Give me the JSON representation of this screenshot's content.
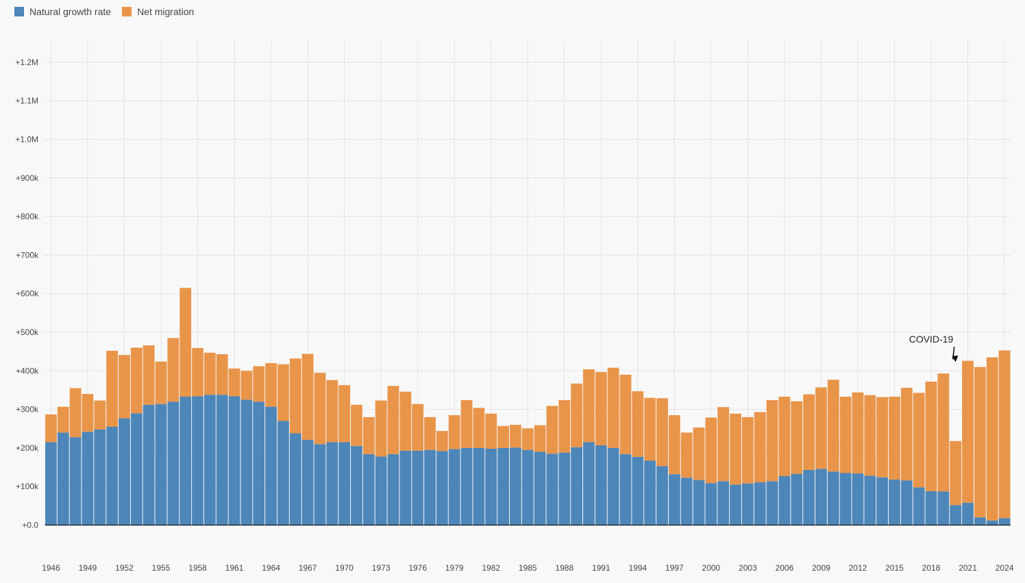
{
  "colors": {
    "natural": "#4d86b9",
    "migration": "#e8954a",
    "grid": "#e4e4e4",
    "axis": "#1a1a1a"
  },
  "chart_data": {
    "type": "bar",
    "stacked": true,
    "grid": true,
    "legend_position": "top-left",
    "title": "",
    "xlabel": "",
    "ylabel": "",
    "ylim": [
      0,
      1250000
    ],
    "years": [
      1946,
      1947,
      1948,
      1949,
      1950,
      1951,
      1952,
      1953,
      1954,
      1955,
      1956,
      1957,
      1958,
      1959,
      1960,
      1961,
      1962,
      1963,
      1964,
      1965,
      1966,
      1967,
      1968,
      1969,
      1970,
      1971,
      1972,
      1973,
      1974,
      1975,
      1976,
      1977,
      1978,
      1979,
      1980,
      1981,
      1982,
      1983,
      1984,
      1985,
      1986,
      1987,
      1988,
      1989,
      1990,
      1991,
      1992,
      1993,
      1994,
      1995,
      1996,
      1997,
      1998,
      1999,
      2000,
      2001,
      2002,
      2003,
      2004,
      2005,
      2006,
      2007,
      2008,
      2009,
      2010,
      2011,
      2012,
      2013,
      2014,
      2015,
      2016,
      2017,
      2018,
      2019,
      2020,
      2021,
      2022,
      2023,
      2024
    ],
    "x_tick_labels": [
      "1946",
      "1949",
      "1952",
      "1955",
      "1958",
      "1961",
      "1964",
      "1967",
      "1970",
      "1973",
      "1976",
      "1979",
      "1982",
      "1985",
      "1988",
      "1991",
      "1994",
      "1997",
      "2000",
      "2003",
      "2006",
      "2009",
      "2012",
      "2015",
      "2018",
      "2021",
      "2024"
    ],
    "y_tick_values": [
      0,
      100000,
      200000,
      300000,
      400000,
      500000,
      600000,
      700000,
      800000,
      900000,
      1000000,
      1100000,
      1200000
    ],
    "y_tick_labels": [
      "+0.0",
      "+100k",
      "+200k",
      "+300k",
      "+400k",
      "+500k",
      "+600k",
      "+700k",
      "+800k",
      "+900k",
      "+1.0M",
      "+1.1M",
      "+1.2M"
    ],
    "series": [
      {
        "name": "Natural growth rate",
        "color": "#4d86b9",
        "values": [
          215000,
          240000,
          228000,
          242000,
          248000,
          255000,
          277000,
          290000,
          312000,
          314000,
          320000,
          333000,
          334000,
          338000,
          338000,
          334000,
          325000,
          320000,
          307000,
          270000,
          238000,
          221000,
          210000,
          215000,
          215000,
          205000,
          184000,
          178000,
          184000,
          193000,
          193000,
          195000,
          192000,
          197000,
          200000,
          200000,
          198000,
          200000,
          201000,
          195000,
          190000,
          185000,
          188000,
          202000,
          215000,
          207000,
          200000,
          184000,
          177000,
          167000,
          153000,
          132000,
          123000,
          117000,
          109000,
          114000,
          105000,
          108000,
          111000,
          114000,
          127000,
          133000,
          143000,
          146000,
          139000,
          135000,
          134000,
          128000,
          124000,
          118000,
          116000,
          98000,
          88000,
          87000,
          52000,
          58000,
          20000,
          12000,
          18000
        ]
      },
      {
        "name": "Net migration",
        "color": "#e8954a",
        "values": [
          72000,
          67000,
          127000,
          98000,
          75000,
          197000,
          164000,
          170000,
          154000,
          110000,
          165000,
          282000,
          125000,
          109000,
          105000,
          72000,
          75000,
          92000,
          113000,
          147000,
          194000,
          223000,
          185000,
          161000,
          148000,
          107000,
          96000,
          145000,
          177000,
          153000,
          121000,
          85000,
          52000,
          88000,
          124000,
          104000,
          91000,
          57000,
          59000,
          56000,
          69000,
          124000,
          136000,
          165000,
          189000,
          190000,
          208000,
          206000,
          170000,
          163000,
          176000,
          153000,
          117000,
          136000,
          170000,
          192000,
          184000,
          172000,
          182000,
          210000,
          206000,
          188000,
          196000,
          211000,
          238000,
          198000,
          210000,
          209000,
          208000,
          215000,
          240000,
          245000,
          284000,
          306000,
          166000,
          368000,
          390000,
          423000,
          435000
        ]
      }
    ],
    "annotations": [
      {
        "text": "COVID-19",
        "year": 2020,
        "value": 405000
      }
    ]
  }
}
